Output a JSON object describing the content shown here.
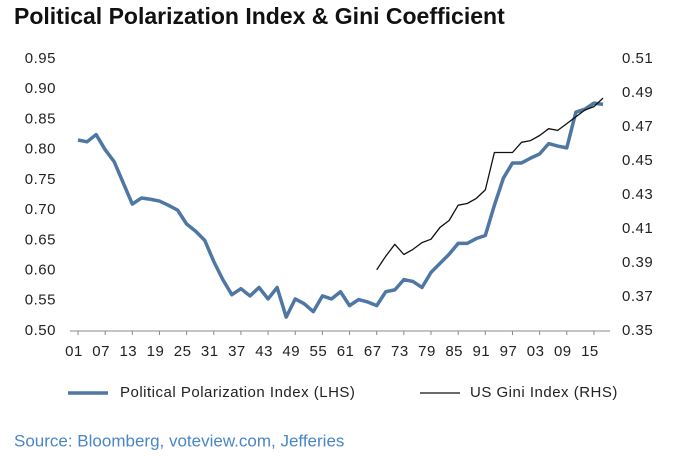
{
  "chart_data": {
    "type": "line",
    "title": "Political Polarization Index & Gini Coefficient",
    "source": "Source: Bloomberg, voteview.com, Jefferies",
    "categories": [
      "01",
      null,
      null,
      "07",
      null,
      null,
      "13",
      null,
      null,
      "19",
      null,
      null,
      "25",
      null,
      null,
      "31",
      null,
      null,
      "37",
      null,
      null,
      "43",
      null,
      null,
      "49",
      null,
      null,
      "55",
      null,
      null,
      "61",
      null,
      null,
      "67",
      null,
      null,
      "73",
      null,
      null,
      "79",
      null,
      null,
      "85",
      null,
      null,
      "91",
      null,
      null,
      "97",
      null,
      null,
      "03",
      null,
      null,
      "09",
      null,
      null,
      "15",
      null
    ],
    "ylim": [
      0.5,
      0.95
    ],
    "yticks": [
      {
        "value": 0.5,
        "label": "0.50"
      },
      0.55,
      {
        "value": 0.6,
        "label": "0.60"
      },
      0.65,
      {
        "value": 0.7,
        "label": "0.70"
      },
      0.75,
      {
        "value": 0.8,
        "label": "0.80"
      },
      0.85,
      {
        "value": 0.9,
        "label": "0.90"
      },
      0.95
    ],
    "y2lim": [
      0.35,
      0.51
    ],
    "y2ticks": [
      0.35,
      0.37,
      0.39,
      0.41,
      0.43,
      0.45,
      0.47,
      0.49,
      0.51
    ],
    "legend": "bottom",
    "series": [
      {
        "name": "Political Polarization Index (LHS)",
        "color": "#4f77a3",
        "axis": "y",
        "values": [
          0.816,
          0.813,
          0.825,
          0.8,
          0.78,
          0.745,
          0.71,
          0.72,
          0.718,
          0.715,
          0.708,
          0.7,
          0.677,
          0.665,
          0.65,
          0.615,
          0.585,
          0.56,
          0.57,
          0.558,
          0.572,
          0.553,
          0.572,
          0.523,
          0.553,
          0.545,
          0.532,
          0.558,
          0.553,
          0.565,
          0.542,
          0.552,
          0.548,
          0.542,
          0.565,
          0.568,
          0.585,
          0.582,
          0.572,
          0.597,
          0.612,
          0.627,
          0.645,
          0.645,
          0.653,
          0.658,
          0.708,
          0.753,
          0.778,
          0.778,
          0.786,
          0.793,
          0.81,
          0.806,
          0.803,
          0.862,
          0.867,
          0.877,
          0.875
        ]
      },
      {
        "name": "US Gini Index (RHS)",
        "color": "#111111",
        "axis": "y2",
        "values": [
          null,
          null,
          null,
          null,
          null,
          null,
          null,
          null,
          null,
          null,
          null,
          null,
          null,
          null,
          null,
          null,
          null,
          null,
          null,
          null,
          null,
          null,
          null,
          null,
          null,
          null,
          null,
          null,
          null,
          null,
          null,
          null,
          null,
          0.386,
          0.394,
          0.401,
          0.395,
          0.398,
          0.402,
          0.404,
          0.411,
          0.415,
          0.424,
          0.425,
          0.428,
          0.433,
          0.455,
          0.455,
          0.455,
          0.461,
          0.462,
          0.465,
          0.469,
          0.468,
          0.472,
          0.476,
          0.48,
          0.482,
          0.487
        ]
      }
    ]
  }
}
